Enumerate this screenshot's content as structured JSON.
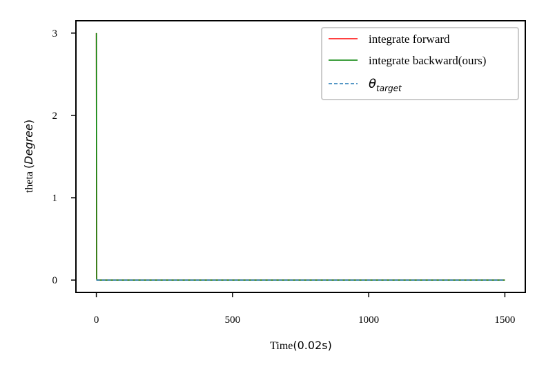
{
  "chart_data": {
    "type": "line",
    "xlabel_text": "Time",
    "xlabel_math": "(0.02s)",
    "ylabel_text": "theta",
    "ylabel_math_open": "(",
    "ylabel_math_inner": "Degree",
    "ylabel_math_close": ")",
    "xlim": [
      -75,
      1575
    ],
    "ylim": [
      -0.15,
      3.15
    ],
    "xticks": [
      0,
      500,
      1000,
      1500
    ],
    "yticks": [
      0,
      1,
      2,
      3
    ],
    "xtick_labels": [
      "0",
      "500",
      "1000",
      "1500"
    ],
    "ytick_labels": [
      "0",
      "1",
      "2",
      "3"
    ],
    "grid": false,
    "legend_placement": "upper-right",
    "series": [
      {
        "name": "integrate forward",
        "color": "#ff0000",
        "style": "solid",
        "x": [
          0,
          1,
          2,
          1500
        ],
        "y": [
          3.0,
          0.02,
          0.0,
          0.0
        ]
      },
      {
        "name": "integrate backward(ours)",
        "color": "#008000",
        "style": "solid",
        "x": [
          0,
          1,
          2,
          1500
        ],
        "y": [
          3.0,
          0.02,
          0.0,
          0.0
        ]
      },
      {
        "name": "θ",
        "name_sub": "target",
        "color": "#1f77b4",
        "style": "dashed",
        "x": [
          0,
          1500
        ],
        "y": [
          0.0,
          0.0
        ]
      }
    ]
  }
}
